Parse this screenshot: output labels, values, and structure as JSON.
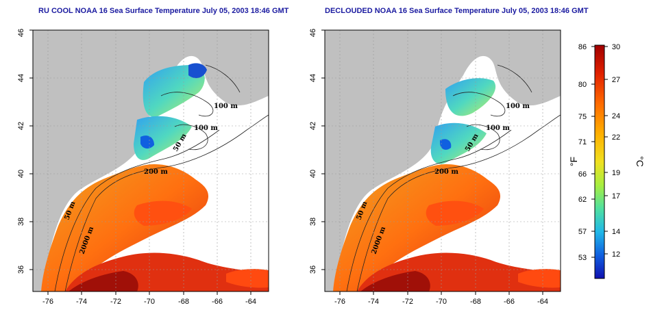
{
  "maps": [
    {
      "title": "RU COOL NOAA 16 Sea Surface Temperature July 05, 2003 18:46 GMT",
      "x_ticks": [
        "-76",
        "-74",
        "-72",
        "-70",
        "-68",
        "-66",
        "-64"
      ],
      "y_ticks": [
        "36",
        "38",
        "40",
        "42",
        "44",
        "46"
      ],
      "isobath_labels": [
        "100 m",
        "100 m",
        "50 m",
        "200 m",
        "50 m",
        "2000 m"
      ]
    },
    {
      "title": "DECLOUDED NOAA 16 Sea Surface Temperature July 05, 2003 18:46 GMT",
      "x_ticks": [
        "-76",
        "-74",
        "-72",
        "-70",
        "-68",
        "-66",
        "-64"
      ],
      "y_ticks": [
        "36",
        "38",
        "40",
        "42",
        "44",
        "46"
      ],
      "isobath_labels": [
        "100 m",
        "100 m",
        "50 m",
        "200 m",
        "50 m",
        "2000 m"
      ]
    }
  ],
  "colorbar": {
    "fahrenheit_ticks": [
      "86",
      "80",
      "75",
      "71",
      "66",
      "62",
      "57",
      "53"
    ],
    "celsius_ticks": [
      "30",
      "27",
      "24",
      "22",
      "19",
      "17",
      "14",
      "12"
    ],
    "fahrenheit_unit": "°F",
    "celsius_unit": "°C",
    "colors": [
      "#a00000",
      "#e02000",
      "#ff6a00",
      "#ffb000",
      "#f0e020",
      "#a8ee40",
      "#50e0a0",
      "#20b8e8",
      "#1060e0",
      "#1010b0"
    ]
  },
  "colors": {
    "land": "#c0c0c0",
    "ocean_clouds": "#ffffff",
    "title": "#1a1aa0"
  }
}
